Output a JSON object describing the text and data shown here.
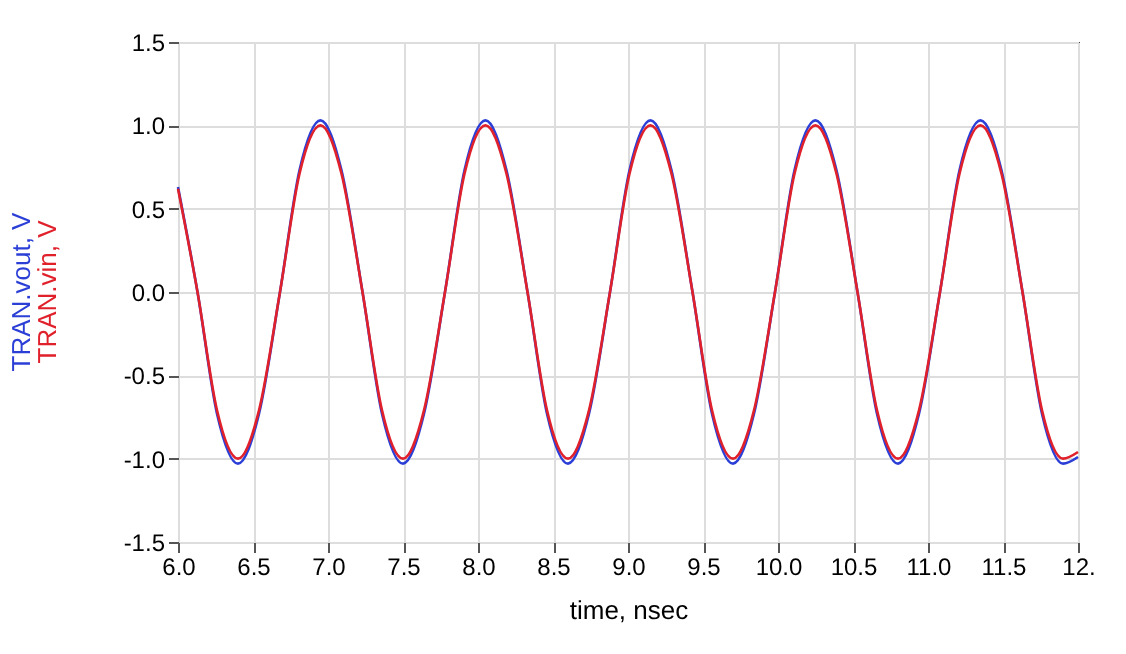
{
  "chart_data": {
    "type": "line",
    "xlabel": "time, nsec",
    "x": [
      6.0,
      6.13,
      6.26,
      6.4,
      6.54,
      6.68,
      6.81,
      6.95,
      7.09,
      7.23,
      7.36,
      7.5,
      7.64,
      7.78,
      7.91,
      8.05,
      8.19,
      8.33,
      8.46,
      8.6,
      8.74,
      8.88,
      9.01,
      9.15,
      9.29,
      9.43,
      9.56,
      9.7,
      9.84,
      9.98,
      10.11,
      10.25,
      10.39,
      10.53,
      10.66,
      10.8,
      10.94,
      11.08,
      11.21,
      11.35,
      11.49,
      11.63,
      11.76,
      11.9,
      12.0
    ],
    "series": [
      {
        "name": "TRAN.vout, V",
        "color": "#2b3fd6",
        "values": [
          0.63,
          0,
          -0.73,
          -1.03,
          -0.73,
          0,
          0.73,
          1.03,
          0.73,
          0,
          -0.73,
          -1.03,
          -0.73,
          0,
          0.73,
          1.03,
          0.73,
          0,
          -0.73,
          -1.03,
          -0.73,
          0,
          0.73,
          1.03,
          0.73,
          0,
          -0.73,
          -1.03,
          -0.73,
          0,
          0.73,
          1.03,
          0.73,
          0,
          -0.73,
          -1.03,
          -0.73,
          0,
          0.73,
          1.03,
          0.73,
          0,
          -0.73,
          -1.03,
          -0.99
        ]
      },
      {
        "name": "TRAN.vin, V",
        "color": "#e0202a",
        "values": [
          0.62,
          0,
          -0.71,
          -1,
          -0.71,
          0,
          0.71,
          1,
          0.71,
          0,
          -0.71,
          -1,
          -0.71,
          0,
          0.71,
          1,
          0.71,
          0,
          -0.71,
          -1,
          -0.71,
          0,
          0.71,
          1,
          0.71,
          0,
          -0.71,
          -1,
          -0.71,
          0,
          0.71,
          1,
          0.71,
          0,
          -0.71,
          -1,
          -0.71,
          0,
          0.71,
          1,
          0.71,
          0,
          -0.71,
          -1,
          -0.96
        ]
      }
    ],
    "xlim": [
      6.0,
      12.0
    ],
    "xticks": [
      {
        "value": 6,
        "label": "6.0"
      },
      6.5,
      {
        "value": 7,
        "label": "7.0"
      },
      7.5,
      {
        "value": 8,
        "label": "8.0"
      },
      8.5,
      {
        "value": 9,
        "label": "9.0"
      },
      9.5,
      {
        "value": 10,
        "label": "10.0"
      },
      10.5,
      {
        "value": 11,
        "label": "11.0"
      },
      11.5,
      {
        "value": 12,
        "label": "12."
      }
    ],
    "ylim": [
      -1.5,
      1.5
    ],
    "yticks": [
      -1.5,
      {
        "value": -1,
        "label": "-1.0"
      },
      -0.5,
      {
        "value": 0,
        "label": "0.0"
      },
      0.5,
      {
        "value": 1,
        "label": "1.0"
      },
      1.5
    ],
    "grid": true,
    "legend": "left",
    "marker": "none",
    "line_style": "solid"
  }
}
